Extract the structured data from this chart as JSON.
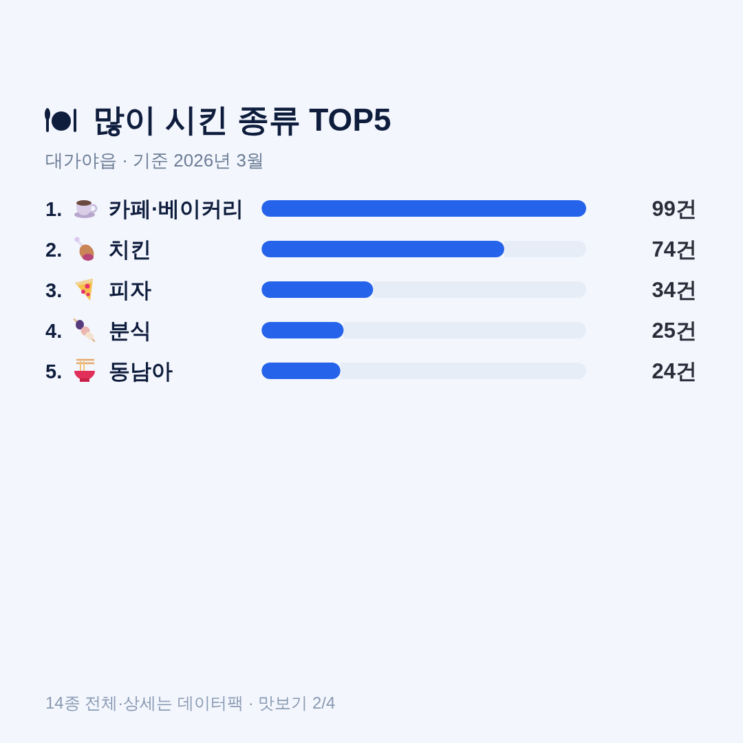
{
  "chart_data": {
    "type": "bar",
    "orientation": "horizontal",
    "title": "많이 시킨 종류 TOP5",
    "subtitle": "대가야읍 · 기준 2026년 3월",
    "categories": [
      "1. 카페·베이커리",
      "2. 치킨",
      "3. 피자",
      "4. 분식",
      "5. 동남아"
    ],
    "values": [
      99,
      74,
      34,
      25,
      24
    ],
    "value_labels": [
      "99건",
      "74건",
      "34건",
      "25건",
      "24건"
    ],
    "color": "#2563eb",
    "xlim": [
      0,
      99
    ],
    "annotations": [
      "14종 전체·상세는 데이터팩 · 맛보기 2/4"
    ]
  }
}
